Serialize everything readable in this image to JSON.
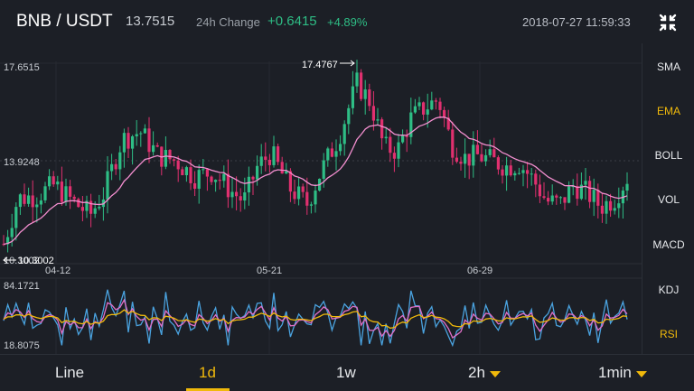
{
  "header": {
    "pair": "BNB / USDT",
    "price": "13.7515",
    "change_label": "24h Change",
    "change_abs": "+0.6415",
    "change_pct": "+4.89%",
    "timestamp": "2018-07-27 11:59:33",
    "fullscreen_icon": "collapse-arrows-icon"
  },
  "chart": {
    "price_axis": {
      "top": "17.6515",
      "mid": "13.9248",
      "low": "10.3002"
    },
    "markers": {
      "high": "17.4767",
      "low": "10.3002"
    },
    "dates": [
      "04-12",
      "05-21",
      "06-29"
    ],
    "sub_axis": {
      "top": "84.1721",
      "bottom": "18.8075"
    },
    "colors": {
      "up": "#2ebd85",
      "down": "#e0306f",
      "ema": "#f48fd0",
      "rsi_fast": "#4aa3e0",
      "rsi_mid": "#e070c8",
      "rsi_slow": "#f0b90b"
    }
  },
  "indicators": [
    "SMA",
    "EMA",
    "BOLL",
    "VOL",
    "MACD",
    "KDJ",
    "RSI"
  ],
  "active_indicators": [
    "EMA",
    "RSI"
  ],
  "timeframes": {
    "line": "Line",
    "d1": "1d",
    "w1": "1w",
    "h2": "2h",
    "min1": "1min",
    "active": "1d"
  }
}
